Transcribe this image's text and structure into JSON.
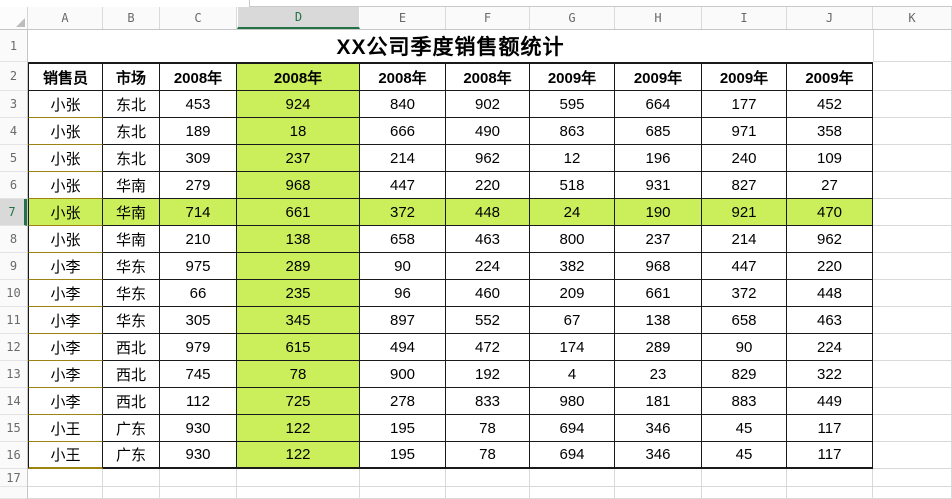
{
  "sheet": {
    "title": "XX公司季度销售额统计",
    "column_labels": [
      "A",
      "B",
      "C",
      "D",
      "E",
      "F",
      "G",
      "H",
      "I",
      "J",
      "K"
    ],
    "row_labels": [
      "1",
      "2",
      "3",
      "4",
      "5",
      "6",
      "7",
      "8",
      "9",
      "10",
      "11",
      "12",
      "13",
      "14",
      "15",
      "16",
      "17"
    ],
    "selection": {
      "column": "D",
      "row": "7",
      "active_cell": "D7"
    },
    "table": {
      "headers": [
        "销售员",
        "市场",
        "2008年",
        "2008年",
        "2008年",
        "2008年",
        "2009年",
        "2009年",
        "2009年",
        "2009年"
      ],
      "rows": [
        [
          "小张",
          "东北",
          "453",
          "924",
          "840",
          "902",
          "595",
          "664",
          "177",
          "452"
        ],
        [
          "小张",
          "东北",
          "189",
          "18",
          "666",
          "490",
          "863",
          "685",
          "971",
          "358"
        ],
        [
          "小张",
          "东北",
          "309",
          "237",
          "214",
          "962",
          "12",
          "196",
          "240",
          "109"
        ],
        [
          "小张",
          "华南",
          "279",
          "968",
          "447",
          "220",
          "518",
          "931",
          "827",
          "27"
        ],
        [
          "小张",
          "华南",
          "714",
          "661",
          "372",
          "448",
          "24",
          "190",
          "921",
          "470"
        ],
        [
          "小张",
          "华南",
          "210",
          "138",
          "658",
          "463",
          "800",
          "237",
          "214",
          "962"
        ],
        [
          "小李",
          "华东",
          "975",
          "289",
          "90",
          "224",
          "382",
          "968",
          "447",
          "220"
        ],
        [
          "小李",
          "华东",
          "66",
          "235",
          "96",
          "460",
          "209",
          "661",
          "372",
          "448"
        ],
        [
          "小李",
          "华东",
          "305",
          "345",
          "897",
          "552",
          "67",
          "138",
          "658",
          "463"
        ],
        [
          "小李",
          "西北",
          "979",
          "615",
          "494",
          "472",
          "174",
          "289",
          "90",
          "224"
        ],
        [
          "小李",
          "西北",
          "745",
          "78",
          "900",
          "192",
          "4",
          "23",
          "829",
          "322"
        ],
        [
          "小李",
          "西北",
          "112",
          "725",
          "278",
          "833",
          "980",
          "181",
          "883",
          "449"
        ],
        [
          "小王",
          "广东",
          "930",
          "122",
          "195",
          "78",
          "694",
          "346",
          "45",
          "117"
        ],
        [
          "小王",
          "广东",
          "930",
          "122",
          "195",
          "78",
          "694",
          "346",
          "45",
          "117"
        ]
      ]
    },
    "colors": {
      "highlight_green": "#cbee5b",
      "selection_green": "#217346",
      "column_a_border": "#9c8412"
    }
  }
}
